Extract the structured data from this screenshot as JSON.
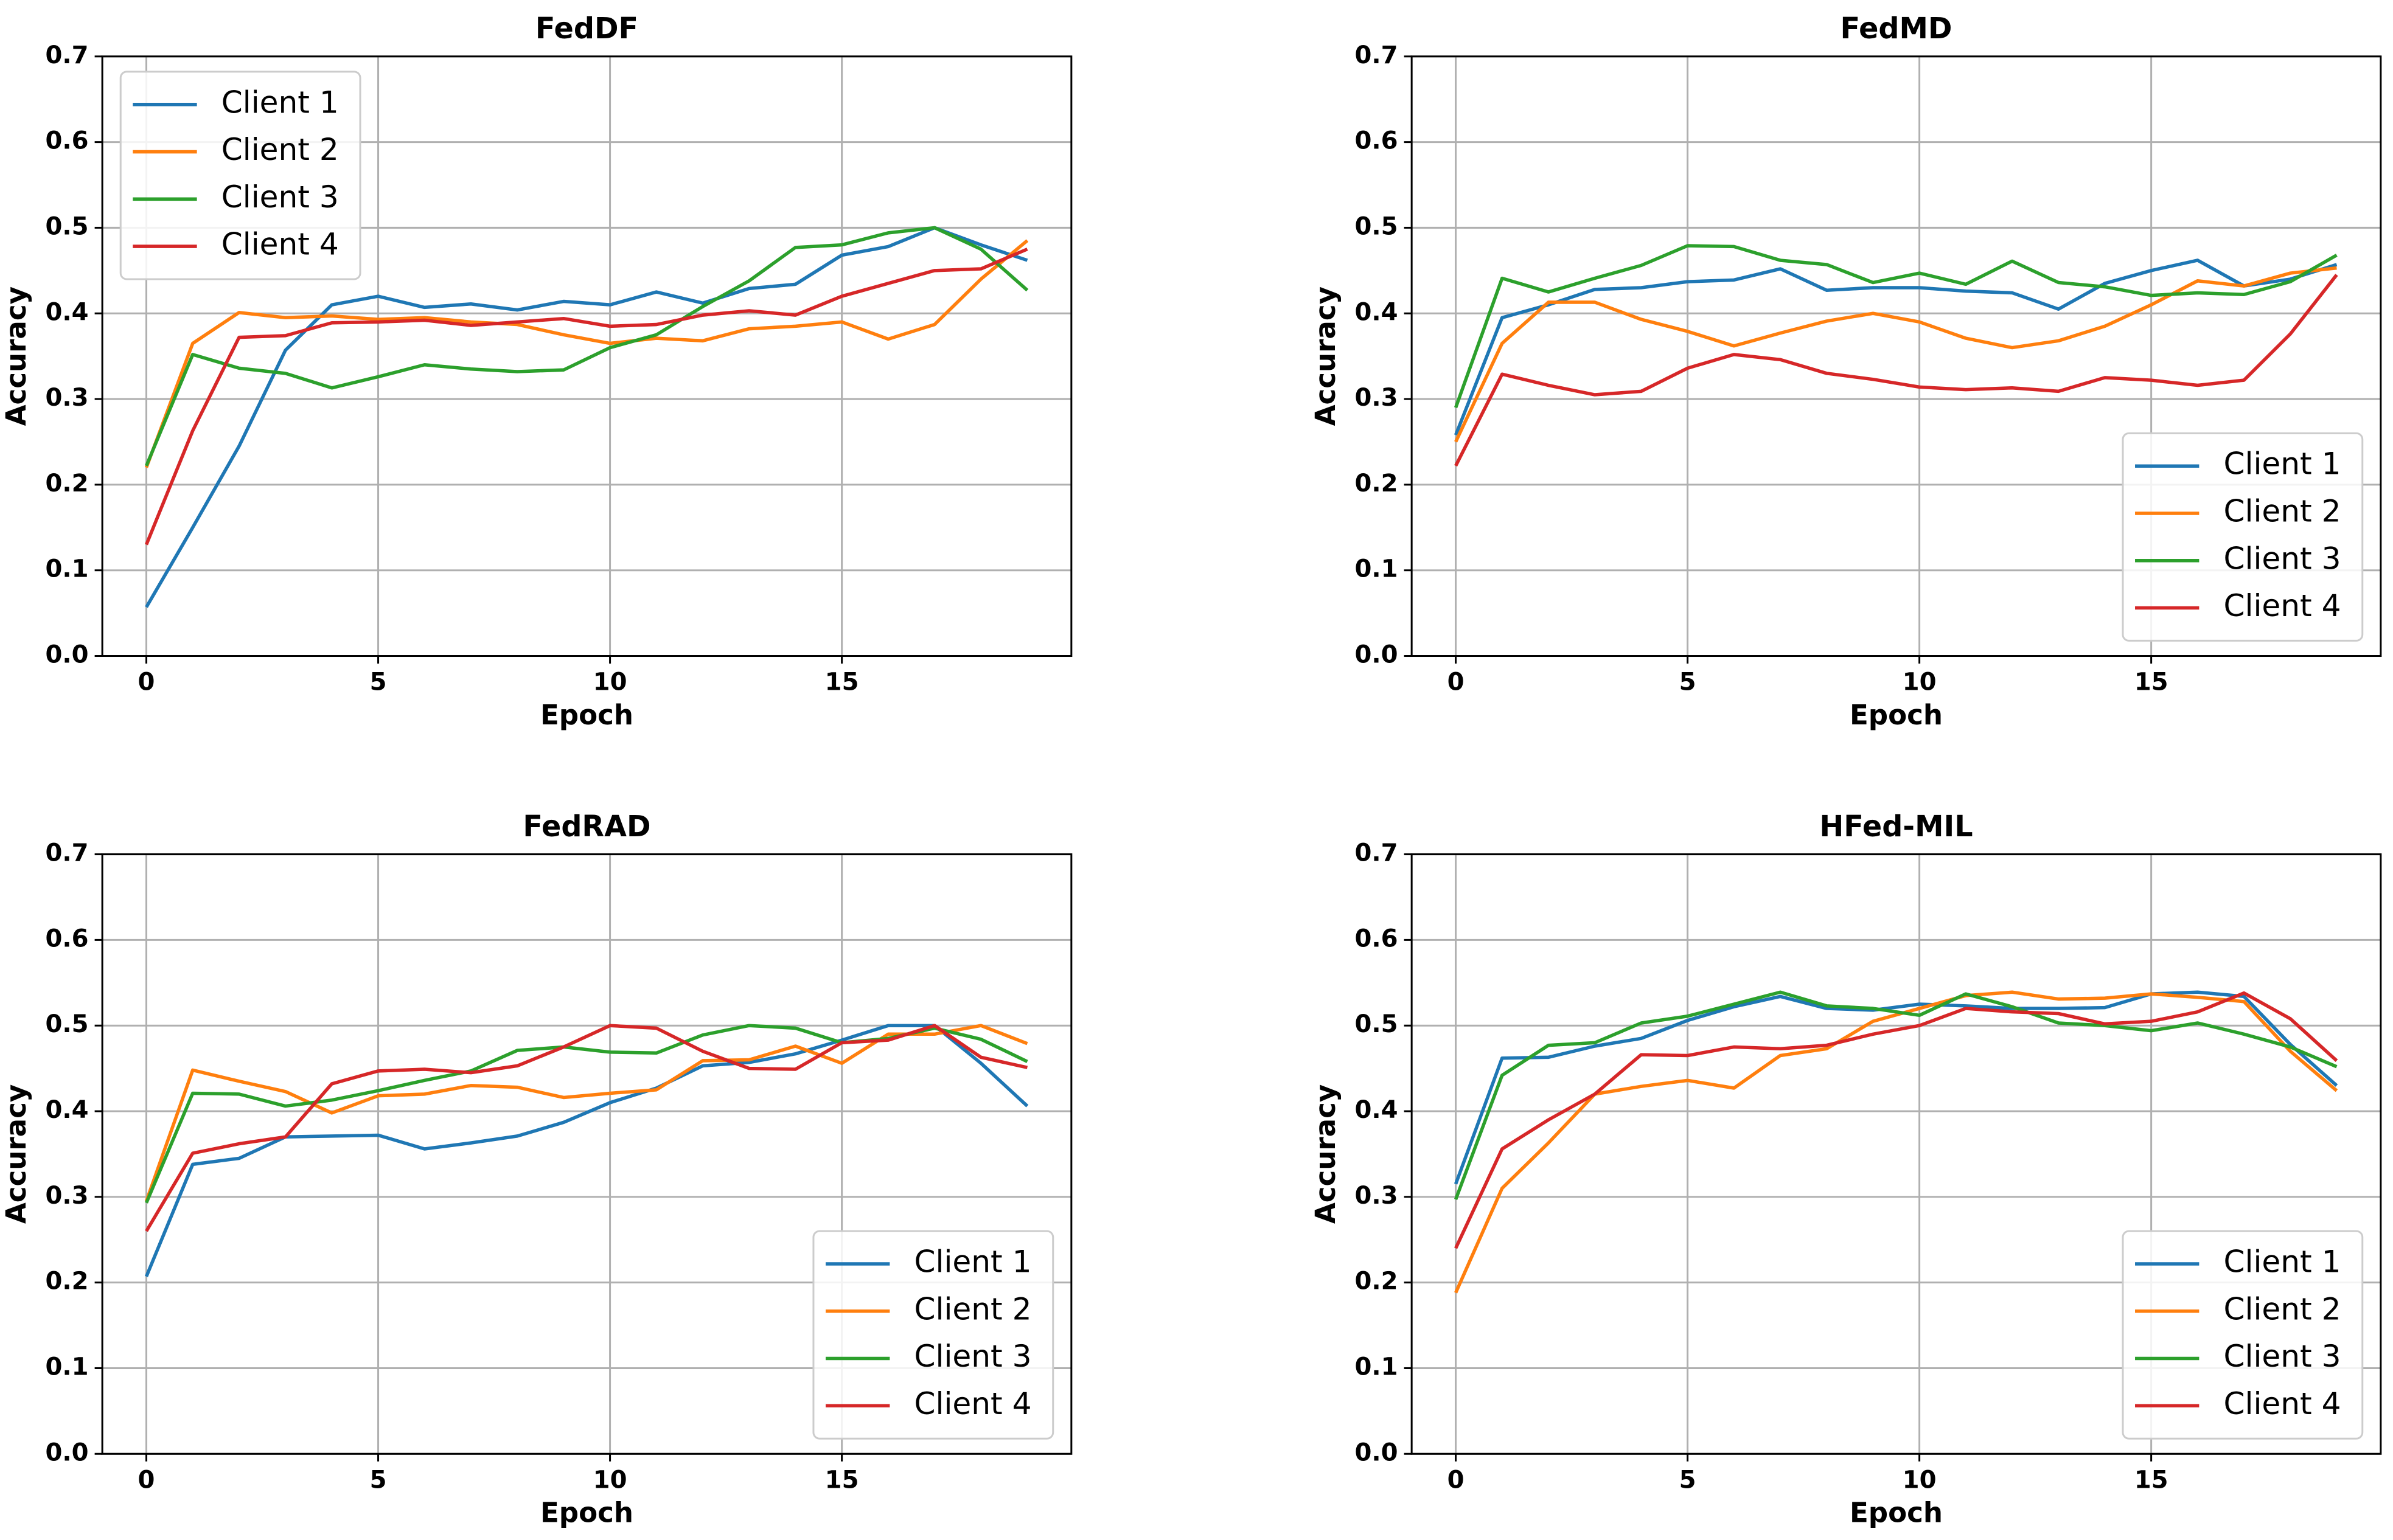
{
  "chart_data": [
    {
      "type": "line",
      "title": "FedDF",
      "x_label": "Epoch",
      "y_label": "Accuracy",
      "x": [
        0,
        1,
        2,
        3,
        4,
        5,
        6,
        7,
        8,
        9,
        10,
        11,
        12,
        13,
        14,
        15,
        16,
        17,
        18,
        19
      ],
      "xlim": [
        -0.95,
        19.95
      ],
      "xticks": [
        0,
        5,
        10,
        15
      ],
      "ylim": [
        0,
        0.7
      ],
      "yticks": [
        {
          "value": 0,
          "label": "0.0"
        },
        0.1,
        0.2,
        0.3,
        0.4,
        0.5,
        0.6,
        0.7
      ],
      "grid": true,
      "legend": "upper-left",
      "series": [
        {
          "name": "Client 1",
          "color": "#1f77b4",
          "values": [
            0.057,
            0.15,
            0.245,
            0.357,
            0.41,
            0.42,
            0.407,
            0.411,
            0.404,
            0.414,
            0.41,
            0.425,
            0.412,
            0.429,
            0.434,
            0.468,
            0.478,
            0.5,
            0.48,
            0.462
          ]
        },
        {
          "name": "Client 2",
          "color": "#ff7f0e",
          "values": [
            0.22,
            0.365,
            0.401,
            0.395,
            0.397,
            0.393,
            0.395,
            0.39,
            0.387,
            0.375,
            0.365,
            0.371,
            0.368,
            0.382,
            0.385,
            0.39,
            0.37,
            0.387,
            0.44,
            0.485
          ]
        },
        {
          "name": "Client 3",
          "color": "#2ca02c",
          "values": [
            0.222,
            0.352,
            0.336,
            0.33,
            0.313,
            0.326,
            0.34,
            0.335,
            0.332,
            0.334,
            0.36,
            0.375,
            0.408,
            0.438,
            0.477,
            0.48,
            0.494,
            0.5,
            0.475,
            0.427
          ]
        },
        {
          "name": "Client 4",
          "color": "#d62728",
          "values": [
            0.13,
            0.263,
            0.372,
            0.374,
            0.389,
            0.39,
            0.392,
            0.386,
            0.39,
            0.394,
            0.385,
            0.387,
            0.398,
            0.403,
            0.398,
            0.42,
            0.435,
            0.45,
            0.452,
            0.475
          ]
        }
      ]
    },
    {
      "type": "line",
      "title": "FedMD",
      "x_label": "Epoch",
      "y_label": "Accuracy",
      "x": [
        0,
        1,
        2,
        3,
        4,
        5,
        6,
        7,
        8,
        9,
        10,
        11,
        12,
        13,
        14,
        15,
        16,
        17,
        18,
        19
      ],
      "xlim": [
        -0.95,
        19.95
      ],
      "xticks": [
        0,
        5,
        10,
        15
      ],
      "ylim": [
        0,
        0.7
      ],
      "yticks": [
        {
          "value": 0,
          "label": "0.0"
        },
        0.1,
        0.2,
        0.3,
        0.4,
        0.5,
        0.6,
        0.7
      ],
      "grid": true,
      "legend": "lower-right",
      "series": [
        {
          "name": "Client 1",
          "color": "#1f77b4",
          "values": [
            0.258,
            0.395,
            0.41,
            0.428,
            0.43,
            0.437,
            0.439,
            0.452,
            0.427,
            0.43,
            0.43,
            0.426,
            0.424,
            0.405,
            0.435,
            0.45,
            0.462,
            0.432,
            0.44,
            0.457
          ]
        },
        {
          "name": "Client 2",
          "color": "#ff7f0e",
          "values": [
            0.25,
            0.365,
            0.413,
            0.413,
            0.393,
            0.379,
            0.362,
            0.377,
            0.391,
            0.4,
            0.39,
            0.371,
            0.36,
            0.368,
            0.385,
            0.41,
            0.438,
            0.432,
            0.447,
            0.453
          ]
        },
        {
          "name": "Client 3",
          "color": "#2ca02c",
          "values": [
            0.29,
            0.441,
            0.425,
            0.441,
            0.456,
            0.479,
            0.478,
            0.462,
            0.457,
            0.436,
            0.447,
            0.434,
            0.461,
            0.436,
            0.431,
            0.421,
            0.424,
            0.422,
            0.437,
            0.468
          ]
        },
        {
          "name": "Client 4",
          "color": "#d62728",
          "values": [
            0.222,
            0.329,
            0.316,
            0.305,
            0.309,
            0.336,
            0.352,
            0.346,
            0.33,
            0.323,
            0.314,
            0.311,
            0.313,
            0.309,
            0.325,
            0.322,
            0.316,
            0.322,
            0.376,
            0.445
          ]
        }
      ]
    },
    {
      "type": "line",
      "title": "FedRAD",
      "x_label": "Epoch",
      "y_label": "Accuracy",
      "x": [
        0,
        1,
        2,
        3,
        4,
        5,
        6,
        7,
        8,
        9,
        10,
        11,
        12,
        13,
        14,
        15,
        16,
        17,
        18,
        19
      ],
      "xlim": [
        -0.95,
        19.95
      ],
      "xticks": [
        0,
        5,
        10,
        15
      ],
      "ylim": [
        0,
        0.7
      ],
      "yticks": [
        {
          "value": 0,
          "label": "0.0"
        },
        0.1,
        0.2,
        0.3,
        0.4,
        0.5,
        0.6,
        0.7
      ],
      "grid": true,
      "legend": "lower-right",
      "series": [
        {
          "name": "Client 1",
          "color": "#1f77b4",
          "values": [
            0.207,
            0.338,
            0.345,
            0.37,
            0.371,
            0.372,
            0.356,
            0.363,
            0.371,
            0.387,
            0.41,
            0.427,
            0.453,
            0.457,
            0.467,
            0.483,
            0.5,
            0.5,
            0.456,
            0.406
          ]
        },
        {
          "name": "Client 2",
          "color": "#ff7f0e",
          "values": [
            0.295,
            0.448,
            0.435,
            0.423,
            0.398,
            0.418,
            0.42,
            0.43,
            0.428,
            0.416,
            0.421,
            0.425,
            0.459,
            0.46,
            0.476,
            0.456,
            0.49,
            0.49,
            0.5,
            0.479
          ]
        },
        {
          "name": "Client 3",
          "color": "#2ca02c",
          "values": [
            0.293,
            0.421,
            0.42,
            0.406,
            0.413,
            0.424,
            0.436,
            0.447,
            0.471,
            0.475,
            0.469,
            0.468,
            0.489,
            0.5,
            0.497,
            0.48,
            0.485,
            0.497,
            0.484,
            0.458
          ]
        },
        {
          "name": "Client 4",
          "color": "#d62728",
          "values": [
            0.26,
            0.351,
            0.362,
            0.37,
            0.432,
            0.447,
            0.449,
            0.445,
            0.453,
            0.475,
            0.5,
            0.497,
            0.47,
            0.45,
            0.449,
            0.48,
            0.483,
            0.5,
            0.463,
            0.451
          ]
        }
      ]
    },
    {
      "type": "line",
      "title": "HFed-MIL",
      "x_label": "Epoch",
      "y_label": "Accuracy",
      "x": [
        0,
        1,
        2,
        3,
        4,
        5,
        6,
        7,
        8,
        9,
        10,
        11,
        12,
        13,
        14,
        15,
        16,
        17,
        18,
        19
      ],
      "xlim": [
        -0.95,
        19.95
      ],
      "xticks": [
        0,
        5,
        10,
        15
      ],
      "ylim": [
        0,
        0.7
      ],
      "yticks": [
        {
          "value": 0,
          "label": "0.0"
        },
        0.1,
        0.2,
        0.3,
        0.4,
        0.5,
        0.6,
        0.7
      ],
      "grid": true,
      "legend": "lower-right",
      "series": [
        {
          "name": "Client 1",
          "color": "#1f77b4",
          "values": [
            0.315,
            0.462,
            0.463,
            0.476,
            0.485,
            0.506,
            0.522,
            0.534,
            0.52,
            0.518,
            0.525,
            0.523,
            0.52,
            0.52,
            0.521,
            0.537,
            0.539,
            0.534,
            0.478,
            0.43
          ]
        },
        {
          "name": "Client 2",
          "color": "#ff7f0e",
          "values": [
            0.188,
            0.31,
            0.363,
            0.42,
            0.429,
            0.436,
            0.427,
            0.465,
            0.473,
            0.505,
            0.52,
            0.535,
            0.539,
            0.531,
            0.532,
            0.537,
            0.533,
            0.528,
            0.47,
            0.424
          ]
        },
        {
          "name": "Client 3",
          "color": "#2ca02c",
          "values": [
            0.297,
            0.442,
            0.477,
            0.48,
            0.503,
            0.511,
            0.525,
            0.539,
            0.523,
            0.52,
            0.512,
            0.537,
            0.522,
            0.503,
            0.5,
            0.494,
            0.503,
            0.49,
            0.475,
            0.452
          ]
        },
        {
          "name": "Client 4",
          "color": "#d62728",
          "values": [
            0.24,
            0.356,
            0.39,
            0.42,
            0.466,
            0.465,
            0.475,
            0.473,
            0.477,
            0.49,
            0.5,
            0.52,
            0.516,
            0.514,
            0.502,
            0.505,
            0.516,
            0.538,
            0.508,
            0.459
          ]
        }
      ]
    }
  ]
}
